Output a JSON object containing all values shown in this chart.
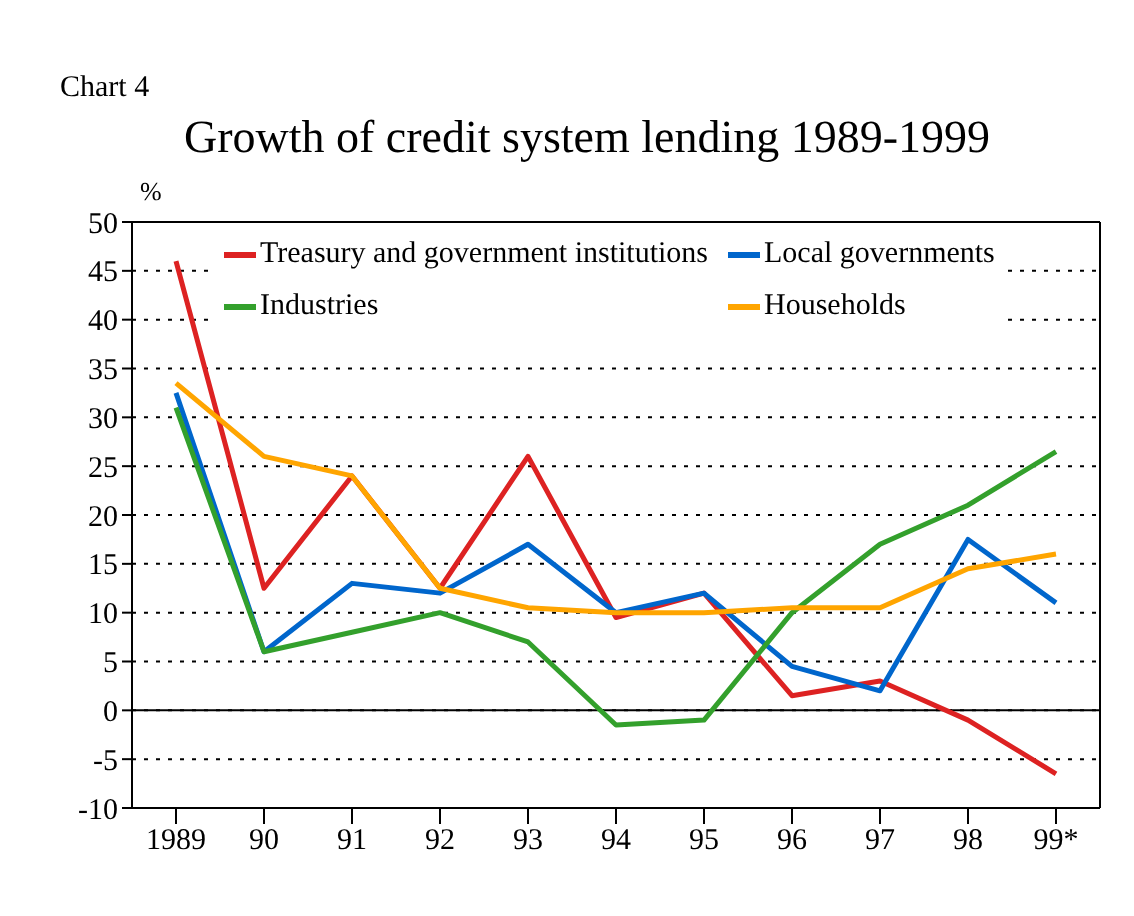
{
  "chart_data": {
    "type": "line",
    "title": "Growth of credit system lending 1989-1999",
    "subtitle": "Chart 4",
    "ylabel": "%",
    "categories": [
      "1989",
      "90",
      "91",
      "92",
      "93",
      "94",
      "95",
      "96",
      "97",
      "98",
      "99*"
    ],
    "series": [
      {
        "name": "Treasury and government institutions",
        "color": "#dd2222",
        "values": [
          46,
          12.5,
          24,
          12.5,
          26,
          9.5,
          12,
          1.5,
          3,
          -1,
          -6.5
        ]
      },
      {
        "name": "Local governments",
        "color": "#0066cc",
        "values": [
          32.5,
          6,
          13,
          12,
          17,
          10,
          12,
          4.5,
          2,
          17.5,
          11
        ]
      },
      {
        "name": "Industries",
        "color": "#33a02c",
        "values": [
          31,
          6,
          8,
          10,
          7,
          -1.5,
          -1,
          10,
          17,
          21,
          26.5
        ]
      },
      {
        "name": "Households",
        "color": "#ffa500",
        "values": [
          33.5,
          26,
          24,
          12.5,
          10.5,
          10,
          10,
          10.5,
          10.5,
          14.5,
          16
        ]
      }
    ],
    "ylim": [
      -10,
      50
    ],
    "yticks": [
      -10,
      -5,
      0,
      5,
      10,
      15,
      20,
      25,
      30,
      35,
      40,
      45,
      50
    ],
    "grid": "y",
    "legend": "top",
    "marker": "none",
    "line_style": "solid",
    "ref_lines": [
      {
        "axis": "y",
        "value": 0,
        "color": "#000000",
        "line_style": "solid"
      }
    ]
  }
}
